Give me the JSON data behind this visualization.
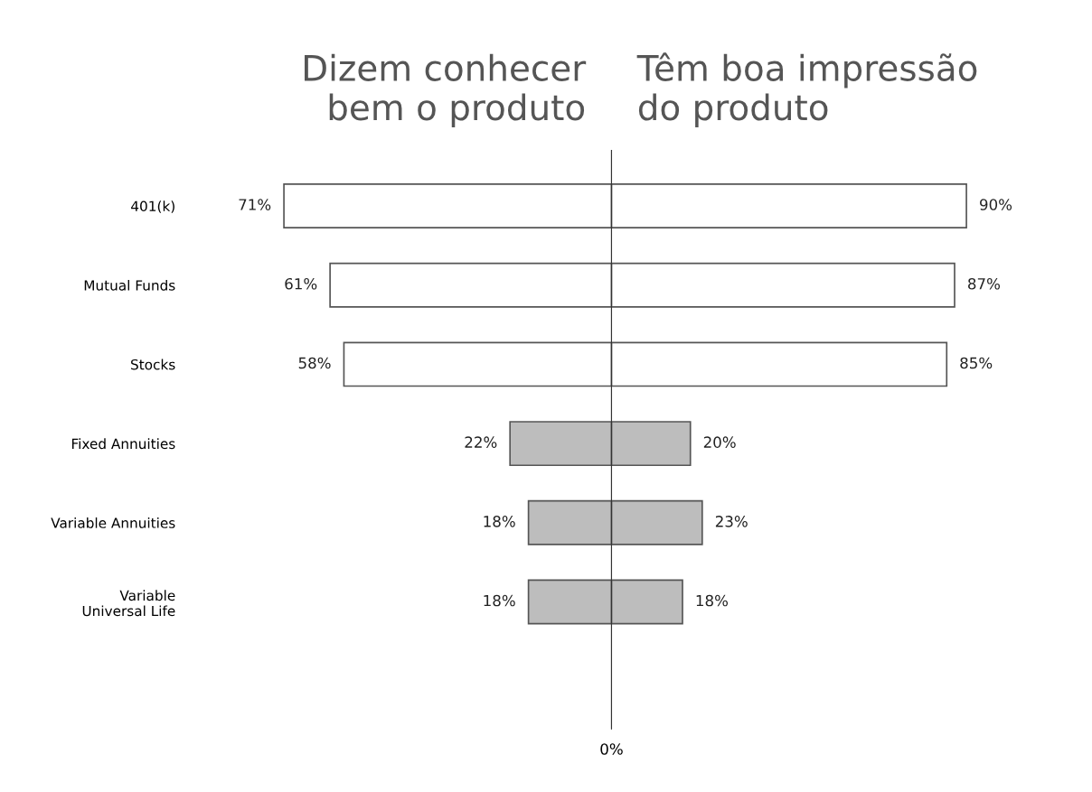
{
  "chart_data": [
    {
      "type": "bar",
      "orientation": "horizontal",
      "title": "Dizem conhecer\nbem o produto",
      "categories": [
        "401(k)",
        "Mutual Funds",
        "Stocks",
        "Fixed Annuities",
        "Variable Annuities",
        "Variable\nUniversal Life"
      ],
      "series": [
        {
          "values": [
            71,
            61,
            58,
            22,
            18,
            18
          ],
          "colors": [
            "#ffffff",
            "#ffffff",
            "#ffffff",
            "#bdbdbd",
            "#bdbdbd",
            "#bdbdbd"
          ],
          "value_labels": [
            "71%",
            "61%",
            "58%",
            "22%",
            "18%",
            "18%"
          ]
        }
      ],
      "tick_labels": "y"
    },
    {
      "type": "bar",
      "orientation": "horizontal",
      "title": "Têm boa impressão\ndo produto",
      "categories": [
        null,
        null,
        null,
        null,
        null,
        null
      ],
      "series": [
        {
          "values": [
            90,
            87,
            85,
            20,
            23,
            18
          ],
          "colors": [
            "#ffffff",
            "#ffffff",
            "#ffffff",
            "#bdbdbd",
            "#bdbdbd",
            "#bdbdbd"
          ],
          "value_labels": [
            "90%",
            "87%",
            "85%",
            "20%",
            "23%",
            "18%"
          ]
        }
      ],
      "annotations": [
        "0%"
      ]
    }
  ]
}
